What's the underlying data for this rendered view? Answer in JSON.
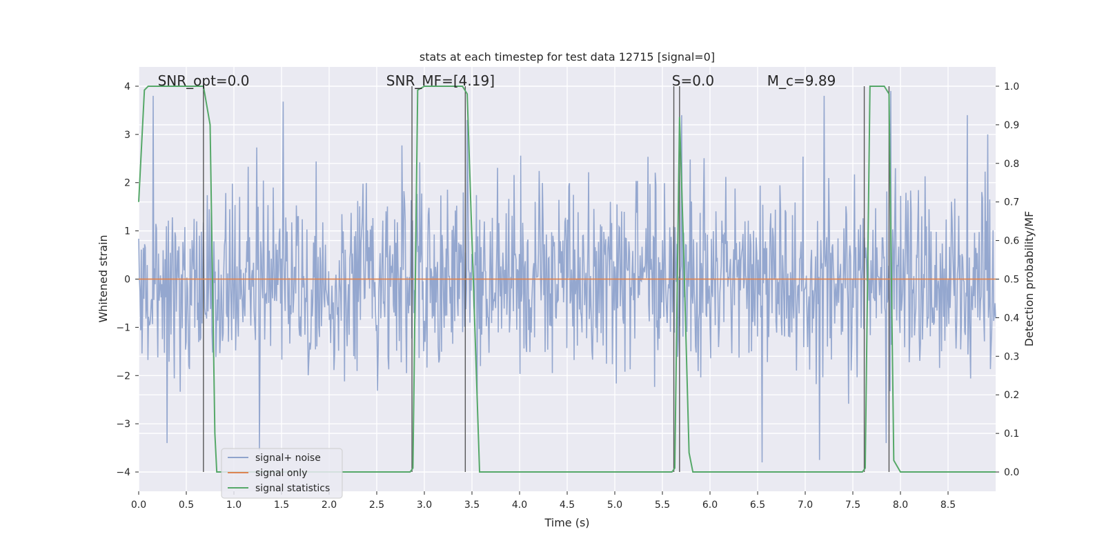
{
  "chart_data": {
    "type": "line",
    "title": "stats at each timestep for test data 12715 [signal=0]",
    "xlabel": "Time (s)",
    "ylabel": "Whitened strain",
    "y2label": "Detection probability/MF",
    "xlim": [
      0.0,
      9.0
    ],
    "ylim": [
      -4.4,
      4.4
    ],
    "y2lim": [
      -0.05,
      1.05
    ],
    "xticks": [
      "0.0",
      "0.5",
      "1.0",
      "1.5",
      "2.0",
      "2.5",
      "3.0",
      "3.5",
      "4.0",
      "4.5",
      "5.0",
      "5.5",
      "6.0",
      "6.5",
      "7.0",
      "7.5",
      "8.0",
      "8.5"
    ],
    "yticks": [
      "4",
      "3",
      "2",
      "1",
      "0",
      "−1",
      "−2",
      "−3",
      "−4"
    ],
    "y2ticks": [
      "1.0",
      "0.9",
      "0.8",
      "0.7",
      "0.6",
      "0.5",
      "0.4",
      "0.3",
      "0.2",
      "0.1",
      "0.0"
    ],
    "grid": true,
    "legend_position": "lower-left",
    "annotations": [
      {
        "text": "SNR_opt=0.0",
        "x": 0.2
      },
      {
        "text": "SNR_MF=[4.19]",
        "x": 2.6
      },
      {
        "text": "S=0.0",
        "x": 5.6
      },
      {
        "text": "M_c=9.89",
        "x": 6.6
      }
    ],
    "series": [
      {
        "name": "signal+ noise",
        "color": "#8fa3cc",
        "style": "noise",
        "axis": "left",
        "spread": 1.0,
        "peaks": [
          [
            0.15,
            3.8
          ],
          [
            1.52,
            3.68
          ],
          [
            0.3,
            -3.4
          ],
          [
            1.27,
            -3.55
          ],
          [
            3.45,
            3.3
          ],
          [
            5.7,
            3.4
          ],
          [
            7.2,
            3.8
          ],
          [
            7.9,
            3.9
          ],
          [
            8.7,
            3.4
          ],
          [
            8.92,
            3.0
          ],
          [
            6.55,
            -3.8
          ],
          [
            7.15,
            -3.75
          ],
          [
            7.85,
            -3.4
          ]
        ]
      },
      {
        "name": "signal only",
        "color": "#dd8452",
        "axis": "left",
        "x": [
          0.0,
          9.0
        ],
        "y": [
          0.0,
          0.0
        ]
      },
      {
        "name": "signal statistics",
        "color": "#55a868",
        "axis": "right",
        "x": [
          0.0,
          0.06,
          0.1,
          0.5,
          0.68,
          0.75,
          0.8,
          0.82,
          2.85,
          2.88,
          2.93,
          3.0,
          3.4,
          3.45,
          3.58,
          5.6,
          5.63,
          5.68,
          5.72,
          5.78,
          5.82,
          7.6,
          7.63,
          7.68,
          7.83,
          7.88,
          7.93,
          8.0,
          9.0
        ],
        "y": [
          0.7,
          0.99,
          1.0,
          1.0,
          1.0,
          0.9,
          0.1,
          0.0,
          0.0,
          0.01,
          0.99,
          1.0,
          1.0,
          0.98,
          0.0,
          0.0,
          0.01,
          0.92,
          0.6,
          0.05,
          0.0,
          0.0,
          0.01,
          1.0,
          1.0,
          0.98,
          0.03,
          0.0,
          0.0
        ]
      }
    ],
    "vlines": [
      0.68,
      2.87,
      3.43,
      5.62,
      5.68,
      7.62,
      7.88
    ]
  }
}
